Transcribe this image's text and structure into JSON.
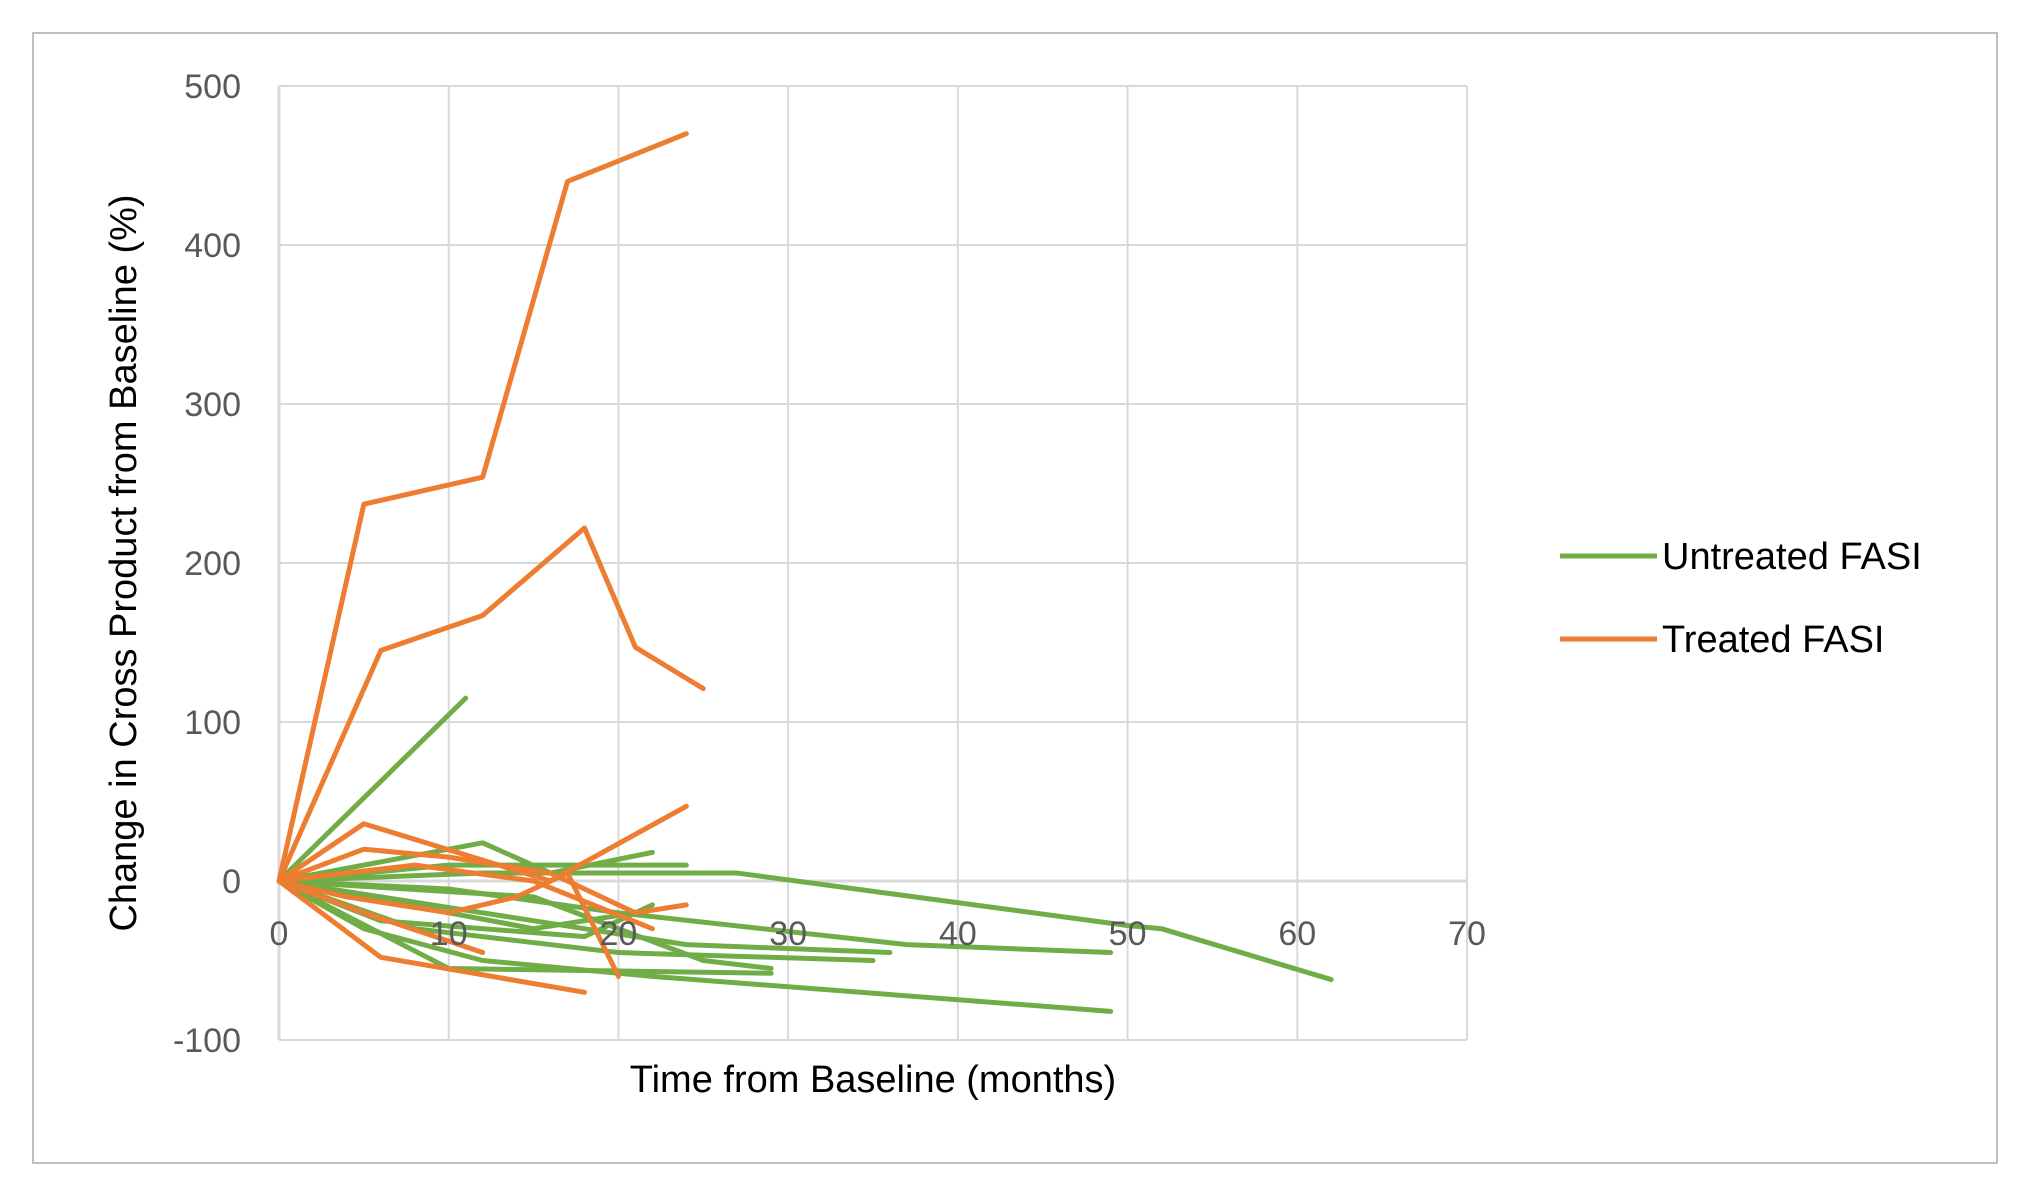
{
  "chart_data": {
    "type": "line",
    "title": "",
    "xlabel": "Time from Baseline (months)",
    "ylabel": "Change in Cross Product from Baseline (%)",
    "xlim": [
      0,
      70
    ],
    "ylim": [
      -100,
      500
    ],
    "xticks": [
      0,
      10,
      20,
      30,
      40,
      50,
      60,
      70
    ],
    "yticks": [
      -100,
      0,
      100,
      200,
      300,
      400,
      500
    ],
    "grid": true,
    "legend_position": "right",
    "colors": {
      "Untreated FASI": "#70ad47",
      "Treated FASI": "#ed7d31"
    },
    "legend": [
      "Untreated FASI",
      "Treated FASI"
    ],
    "groups": [
      {
        "name": "Untreated FASI",
        "color": "#70ad47",
        "lines": [
          [
            [
              0,
              0
            ],
            [
              11,
              115
            ]
          ],
          [
            [
              0,
              0
            ],
            [
              12,
              24
            ],
            [
              16,
              5
            ],
            [
              22,
              18
            ]
          ],
          [
            [
              0,
              0
            ],
            [
              10,
              10
            ],
            [
              24,
              10
            ]
          ],
          [
            [
              0,
              0
            ],
            [
              12,
              5
            ],
            [
              27,
              5
            ],
            [
              50,
              -28
            ],
            [
              52,
              -30
            ],
            [
              62,
              -62
            ]
          ],
          [
            [
              0,
              0
            ],
            [
              10,
              -5
            ],
            [
              20,
              -20
            ],
            [
              37,
              -40
            ],
            [
              49,
              -45
            ]
          ],
          [
            [
              0,
              0
            ],
            [
              5,
              -30
            ],
            [
              12,
              -50
            ],
            [
              22,
              -60
            ],
            [
              49,
              -82
            ]
          ],
          [
            [
              0,
              0
            ],
            [
              8,
              -30
            ],
            [
              20,
              -45
            ],
            [
              35,
              -50
            ]
          ],
          [
            [
              0,
              0
            ],
            [
              10,
              -55
            ],
            [
              29,
              -58
            ]
          ],
          [
            [
              0,
              0
            ],
            [
              15,
              -10
            ],
            [
              25,
              -50
            ],
            [
              29,
              -55
            ]
          ],
          [
            [
              0,
              0
            ],
            [
              6,
              -25
            ],
            [
              18,
              -35
            ],
            [
              22,
              -15
            ]
          ],
          [
            [
              0,
              0
            ],
            [
              12,
              -20
            ],
            [
              24,
              -40
            ],
            [
              36,
              -45
            ]
          ],
          [
            [
              0,
              0
            ],
            [
              15,
              -30
            ],
            [
              21,
              -20
            ]
          ]
        ]
      },
      {
        "name": "Treated FASI",
        "color": "#ed7d31",
        "lines": [
          [
            [
              0,
              0
            ],
            [
              5,
              237
            ],
            [
              12,
              254
            ],
            [
              17,
              440
            ],
            [
              24,
              470
            ]
          ],
          [
            [
              0,
              0
            ],
            [
              6,
              145
            ],
            [
              12,
              167
            ],
            [
              18,
              222
            ],
            [
              21,
              147
            ],
            [
              25,
              121
            ]
          ],
          [
            [
              0,
              0
            ],
            [
              5,
              36
            ],
            [
              16,
              0
            ],
            [
              24,
              47
            ]
          ],
          [
            [
              0,
              0
            ],
            [
              5,
              20
            ],
            [
              10,
              15
            ],
            [
              16,
              5
            ],
            [
              21,
              -20
            ],
            [
              24,
              -15
            ]
          ],
          [
            [
              0,
              0
            ],
            [
              6,
              -48
            ],
            [
              18,
              -70
            ]
          ],
          [
            [
              0,
              0
            ],
            [
              5,
              -20
            ],
            [
              12,
              -45
            ]
          ],
          [
            [
              0,
              0
            ],
            [
              4,
              -10
            ],
            [
              10,
              -20
            ],
            [
              14,
              -10
            ],
            [
              17,
              5
            ],
            [
              20,
              -60
            ]
          ],
          [
            [
              0,
              0
            ],
            [
              8,
              10
            ],
            [
              15,
              0
            ],
            [
              22,
              -30
            ]
          ]
        ]
      }
    ]
  }
}
